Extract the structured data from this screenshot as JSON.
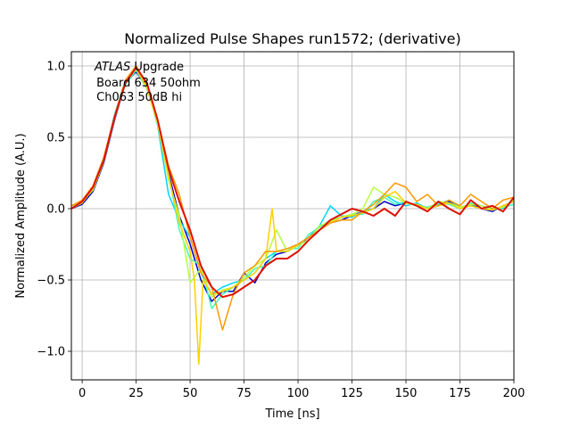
{
  "chart_data": {
    "type": "line",
    "title": "Normalized Pulse Shapes run1572; (derivative)",
    "xlabel": "Time [ns]",
    "ylabel": "Normalized Amplitude (A.U.)",
    "xlim": [
      -5,
      200
    ],
    "ylim": [
      -1.2,
      1.1
    ],
    "x_ticks": [
      0,
      25,
      50,
      75,
      100,
      125,
      150,
      175,
      200
    ],
    "x_tick_labels": [
      "0",
      "25",
      "50",
      "75",
      "100",
      "125",
      "150",
      "175",
      "200"
    ],
    "y_ticks": [
      -1.0,
      -0.5,
      0.0,
      0.5,
      1.0
    ],
    "y_tick_labels": [
      "−1.0",
      "−0.5",
      "0.0",
      "0.5",
      "1.0"
    ],
    "grid": true,
    "annotation": {
      "line1_italic": "ATLAS",
      "line1_rest": " Upgrade",
      "line2": " Board 634 50ohm",
      "line3": " Ch063 50dB hi"
    },
    "series": [
      {
        "color": "#0000cc",
        "x": [
          -5,
          0,
          5,
          10,
          15,
          20,
          25,
          30,
          35,
          40,
          45,
          50,
          55,
          60,
          65,
          70,
          75,
          80,
          85,
          90,
          95,
          100,
          105,
          110,
          115,
          120,
          125,
          130,
          135,
          140,
          145,
          150,
          155,
          160,
          165,
          170,
          175,
          180,
          185,
          190,
          195,
          200
        ],
        "y": [
          0.0,
          0.03,
          0.12,
          0.32,
          0.62,
          0.88,
          0.96,
          0.85,
          0.6,
          0.25,
          -0.05,
          -0.25,
          -0.5,
          -0.65,
          -0.58,
          -0.58,
          -0.45,
          -0.52,
          -0.38,
          -0.32,
          -0.3,
          -0.26,
          -0.2,
          -0.15,
          -0.1,
          -0.08,
          -0.05,
          -0.02,
          0.0,
          0.05,
          0.02,
          0.04,
          0.03,
          0.0,
          0.02,
          0.05,
          0.0,
          0.03,
          0.0,
          -0.02,
          0.02,
          0.05
        ]
      },
      {
        "color": "#00d4ff",
        "x": [
          -5,
          0,
          5,
          10,
          15,
          20,
          25,
          30,
          35,
          40,
          45,
          50,
          55,
          60,
          65,
          70,
          75,
          80,
          85,
          90,
          95,
          100,
          105,
          110,
          115,
          120,
          125,
          130,
          135,
          140,
          145,
          150,
          155,
          160,
          165,
          170,
          175,
          180,
          185,
          190,
          195,
          200
        ],
        "y": [
          0.02,
          0.05,
          0.15,
          0.35,
          0.66,
          0.9,
          0.98,
          0.86,
          0.58,
          0.1,
          -0.08,
          -0.2,
          -0.45,
          -0.6,
          -0.55,
          -0.52,
          -0.5,
          -0.45,
          -0.35,
          -0.3,
          -0.3,
          -0.25,
          -0.2,
          -0.12,
          0.02,
          -0.05,
          -0.06,
          -0.02,
          0.0,
          0.1,
          0.05,
          0.02,
          0.04,
          0.0,
          0.03,
          0.06,
          0.01,
          0.02,
          0.0,
          0.0,
          0.0,
          0.07
        ]
      },
      {
        "color": "#40ffb8",
        "x": [
          -5,
          0,
          5,
          10,
          15,
          20,
          25,
          30,
          35,
          40,
          45,
          50,
          55,
          60,
          65,
          70,
          75,
          80,
          85,
          90,
          95,
          100,
          105,
          110,
          115,
          120,
          125,
          130,
          135,
          140,
          145,
          150,
          155,
          160,
          165,
          170,
          175,
          180,
          185,
          190,
          195,
          200
        ],
        "y": [
          0.0,
          0.04,
          0.14,
          0.34,
          0.64,
          0.87,
          0.97,
          0.84,
          0.6,
          0.24,
          -0.15,
          -0.35,
          -0.4,
          -0.7,
          -0.6,
          -0.55,
          -0.5,
          -0.42,
          -0.4,
          -0.3,
          -0.28,
          -0.28,
          -0.18,
          -0.13,
          -0.08,
          -0.06,
          -0.04,
          -0.04,
          0.05,
          0.08,
          0.03,
          0.05,
          0.02,
          0.01,
          0.04,
          0.03,
          0.0,
          0.04,
          0.02,
          0.0,
          0.01,
          0.03
        ]
      },
      {
        "color": "#b8ff40",
        "x": [
          -5,
          0,
          5,
          10,
          15,
          20,
          25,
          30,
          35,
          40,
          45,
          50,
          55,
          60,
          65,
          70,
          75,
          80,
          85,
          90,
          95,
          100,
          105,
          110,
          115,
          120,
          125,
          130,
          135,
          140,
          145,
          150,
          155,
          160,
          165,
          170,
          175,
          180,
          185,
          190,
          195,
          200
        ],
        "y": [
          0.02,
          0.05,
          0.13,
          0.33,
          0.63,
          0.88,
          0.99,
          0.85,
          0.59,
          0.2,
          -0.05,
          -0.52,
          -0.42,
          -0.62,
          -0.57,
          -0.55,
          -0.48,
          -0.4,
          -0.35,
          -0.15,
          -0.3,
          -0.26,
          -0.22,
          -0.12,
          -0.09,
          -0.06,
          -0.04,
          0.0,
          0.15,
          0.1,
          0.08,
          0.04,
          0.02,
          0.0,
          0.05,
          0.04,
          0.01,
          0.03,
          0.02,
          -0.01,
          0.01,
          0.06
        ]
      },
      {
        "color": "#ffd000",
        "x": [
          -5,
          0,
          5,
          10,
          15,
          20,
          25,
          30,
          35,
          40,
          45,
          50,
          52,
          54,
          56,
          60,
          65,
          70,
          75,
          80,
          85,
          88,
          90,
          95,
          100,
          105,
          110,
          115,
          120,
          125,
          130,
          135,
          140,
          145,
          150,
          155,
          160,
          165,
          170,
          175,
          180,
          185,
          190,
          195,
          200
        ],
        "y": [
          0.0,
          0.04,
          0.14,
          0.34,
          0.65,
          0.89,
          0.98,
          0.85,
          0.6,
          0.23,
          -0.1,
          -0.3,
          -0.5,
          -1.09,
          -0.5,
          -0.6,
          -0.58,
          -0.55,
          -0.5,
          -0.45,
          -0.35,
          0.0,
          -0.3,
          -0.3,
          -0.25,
          -0.2,
          -0.15,
          -0.1,
          -0.06,
          -0.05,
          -0.03,
          0.0,
          0.08,
          0.12,
          0.04,
          0.03,
          0.0,
          0.02,
          0.04,
          0.0,
          0.02,
          0.0,
          -0.01,
          0.02,
          0.05
        ]
      },
      {
        "color": "#ff9900",
        "x": [
          -5,
          0,
          5,
          10,
          15,
          20,
          25,
          30,
          35,
          40,
          45,
          50,
          55,
          60,
          65,
          70,
          75,
          80,
          85,
          90,
          95,
          100,
          105,
          110,
          115,
          120,
          125,
          130,
          135,
          140,
          145,
          150,
          155,
          160,
          165,
          170,
          175,
          180,
          185,
          190,
          195,
          200
        ],
        "y": [
          0.02,
          0.06,
          0.16,
          0.36,
          0.65,
          0.9,
          1.0,
          0.87,
          0.62,
          0.3,
          0.1,
          -0.2,
          -0.45,
          -0.55,
          -0.85,
          -0.6,
          -0.45,
          -0.4,
          -0.3,
          -0.3,
          -0.28,
          -0.25,
          -0.2,
          -0.15,
          -0.1,
          -0.08,
          -0.08,
          -0.02,
          0.03,
          0.1,
          0.18,
          0.15,
          0.05,
          0.1,
          0.02,
          0.06,
          0.02,
          0.1,
          0.05,
          0.0,
          0.06,
          0.08
        ]
      },
      {
        "color": "#dd1100",
        "x": [
          -5,
          0,
          5,
          10,
          15,
          20,
          25,
          30,
          35,
          40,
          45,
          50,
          55,
          60,
          65,
          70,
          75,
          80,
          85,
          90,
          95,
          100,
          105,
          110,
          115,
          120,
          125,
          130,
          135,
          140,
          145,
          150,
          155,
          160,
          165,
          170,
          175,
          180,
          185,
          190,
          195,
          200
        ],
        "y": [
          0.0,
          0.05,
          0.15,
          0.34,
          0.64,
          0.88,
          0.99,
          0.88,
          0.62,
          0.28,
          0.05,
          -0.15,
          -0.4,
          -0.55,
          -0.62,
          -0.6,
          -0.55,
          -0.5,
          -0.4,
          -0.35,
          -0.35,
          -0.3,
          -0.22,
          -0.15,
          -0.08,
          -0.04,
          0.0,
          -0.02,
          -0.05,
          0.0,
          -0.05,
          0.05,
          0.02,
          -0.02,
          0.05,
          0.0,
          -0.04,
          0.06,
          0.0,
          0.02,
          -0.02,
          0.08
        ]
      }
    ]
  }
}
